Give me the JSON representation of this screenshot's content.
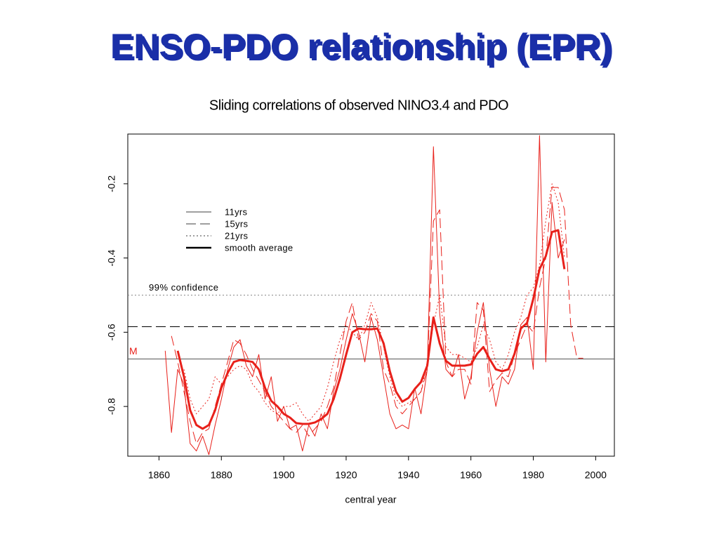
{
  "slide": {
    "title": "ENSO-PDO relationship (EPR)"
  },
  "chart_data": {
    "type": "line",
    "title": "Sliding correlations of observed NINO3.4 and PDO",
    "x_label": "central year",
    "x": [
      1862,
      1864,
      1866,
      1868,
      1870,
      1872,
      1874,
      1876,
      1878,
      1880,
      1882,
      1884,
      1886,
      1888,
      1890,
      1892,
      1894,
      1896,
      1898,
      1900,
      1902,
      1904,
      1906,
      1908,
      1910,
      1912,
      1914,
      1916,
      1918,
      1920,
      1922,
      1924,
      1926,
      1928,
      1930,
      1932,
      1934,
      1936,
      1938,
      1940,
      1942,
      1944,
      1946,
      1948,
      1950,
      1952,
      1954,
      1956,
      1958,
      1960,
      1962,
      1964,
      1966,
      1968,
      1970,
      1972,
      1974,
      1976,
      1978,
      1980,
      1982,
      1984,
      1986,
      1988,
      1990,
      1992,
      1994,
      1996
    ],
    "xlim": [
      1850,
      2006
    ],
    "xticks": [
      1860,
      1880,
      1900,
      1920,
      1940,
      1960,
      1980,
      2000
    ],
    "ylim": [
      -0.934,
      -0.066
    ],
    "yticks": [
      -0.8,
      -0.6,
      -0.4,
      -0.2
    ],
    "legend_color": "#000000",
    "series": [
      {
        "name": "11yrs",
        "color": "#e8201a",
        "dash": "solid",
        "width": 1,
        "values": [
          -0.65,
          -0.87,
          -0.7,
          -0.74,
          -0.9,
          -0.92,
          -0.88,
          -0.93,
          -0.85,
          -0.78,
          -0.7,
          -0.64,
          -0.62,
          -0.69,
          -0.72,
          -0.66,
          -0.78,
          -0.72,
          -0.84,
          -0.8,
          -0.86,
          -0.85,
          -0.92,
          -0.85,
          -0.88,
          -0.82,
          -0.86,
          -0.76,
          -0.7,
          -0.62,
          -0.55,
          -0.6,
          -0.68,
          -0.56,
          -0.62,
          -0.72,
          -0.82,
          -0.86,
          -0.85,
          -0.86,
          -0.75,
          -0.82,
          -0.7,
          -0.1,
          -0.55,
          -0.7,
          -0.72,
          -0.66,
          -0.78,
          -0.72,
          -0.6,
          -0.52,
          -0.7,
          -0.8,
          -0.72,
          -0.74,
          -0.7,
          -0.58,
          -0.56,
          -0.7,
          -0.07,
          -0.68,
          -0.25,
          -0.4,
          -0.35,
          null,
          null,
          null
        ]
      },
      {
        "name": "15yrs",
        "color": "#e8201a",
        "dash": "dashed",
        "width": 1,
        "values": [
          null,
          -0.61,
          -0.68,
          -0.76,
          -0.84,
          -0.9,
          -0.87,
          -0.86,
          -0.8,
          -0.74,
          -0.68,
          -0.62,
          -0.63,
          -0.66,
          -0.7,
          -0.73,
          -0.76,
          -0.8,
          -0.82,
          -0.84,
          -0.86,
          -0.87,
          -0.85,
          -0.88,
          -0.86,
          -0.84,
          -0.8,
          -0.75,
          -0.66,
          -0.57,
          -0.52,
          -0.62,
          -0.6,
          -0.55,
          -0.57,
          -0.7,
          -0.74,
          -0.8,
          -0.82,
          -0.8,
          -0.78,
          -0.76,
          -0.7,
          -0.3,
          -0.27,
          -0.68,
          -0.72,
          -0.7,
          -0.7,
          -0.74,
          -0.52,
          -0.54,
          -0.76,
          -0.73,
          -0.71,
          -0.72,
          -0.66,
          -0.62,
          -0.58,
          -0.6,
          -0.48,
          -0.4,
          -0.21,
          -0.21,
          -0.27,
          -0.58,
          -0.67,
          -0.67
        ]
      },
      {
        "name": "21yrs",
        "color": "#e8201a",
        "dash": "dotted",
        "width": 1,
        "values": [
          null,
          null,
          null,
          -0.7,
          -0.78,
          -0.82,
          -0.8,
          -0.78,
          -0.72,
          -0.74,
          -0.72,
          -0.7,
          -0.69,
          -0.7,
          -0.74,
          -0.76,
          -0.79,
          -0.81,
          -0.82,
          -0.8,
          -0.8,
          -0.79,
          -0.82,
          -0.84,
          -0.82,
          -0.8,
          -0.75,
          -0.68,
          -0.62,
          -0.58,
          -0.6,
          -0.62,
          -0.58,
          -0.52,
          -0.56,
          -0.64,
          -0.72,
          -0.78,
          -0.8,
          -0.79,
          -0.78,
          -0.76,
          -0.68,
          -0.58,
          -0.5,
          -0.64,
          -0.66,
          -0.66,
          -0.67,
          -0.68,
          -0.64,
          -0.58,
          -0.62,
          -0.68,
          -0.7,
          -0.66,
          -0.6,
          -0.56,
          -0.5,
          -0.48,
          -0.42,
          -0.3,
          -0.2,
          -0.25,
          -0.4,
          null,
          null,
          null
        ]
      },
      {
        "name": "smooth average",
        "color": "#e8201a",
        "dash": "solid",
        "width": 3,
        "values": [
          null,
          null,
          -0.65,
          -0.72,
          -0.81,
          -0.85,
          -0.86,
          -0.85,
          -0.81,
          -0.75,
          -0.71,
          -0.68,
          -0.675,
          -0.677,
          -0.68,
          -0.7,
          -0.75,
          -0.785,
          -0.8,
          -0.82,
          -0.83,
          -0.845,
          -0.847,
          -0.847,
          -0.843,
          -0.834,
          -0.82,
          -0.78,
          -0.725,
          -0.66,
          -0.6,
          -0.59,
          -0.592,
          -0.592,
          -0.59,
          -0.63,
          -0.705,
          -0.76,
          -0.787,
          -0.777,
          -0.753,
          -0.734,
          -0.69,
          -0.56,
          -0.63,
          -0.677,
          -0.69,
          -0.69,
          -0.69,
          -0.687,
          -0.658,
          -0.64,
          -0.672,
          -0.7,
          -0.705,
          -0.7,
          -0.658,
          -0.59,
          -0.575,
          -0.51,
          -0.43,
          -0.395,
          -0.33,
          -0.325,
          -0.43,
          null,
          null,
          null
        ]
      }
    ],
    "reference_lines": [
      {
        "value": -0.5,
        "label": "99% confidence",
        "dash": "dotted",
        "color": "#888888",
        "label_color": "#000000"
      },
      {
        "value": -0.585,
        "dash": "dashed",
        "color": "#000000"
      },
      {
        "value": -0.672,
        "label": "M",
        "dash": "solid",
        "color": "#555555",
        "label_color": "#e8201a"
      }
    ]
  }
}
